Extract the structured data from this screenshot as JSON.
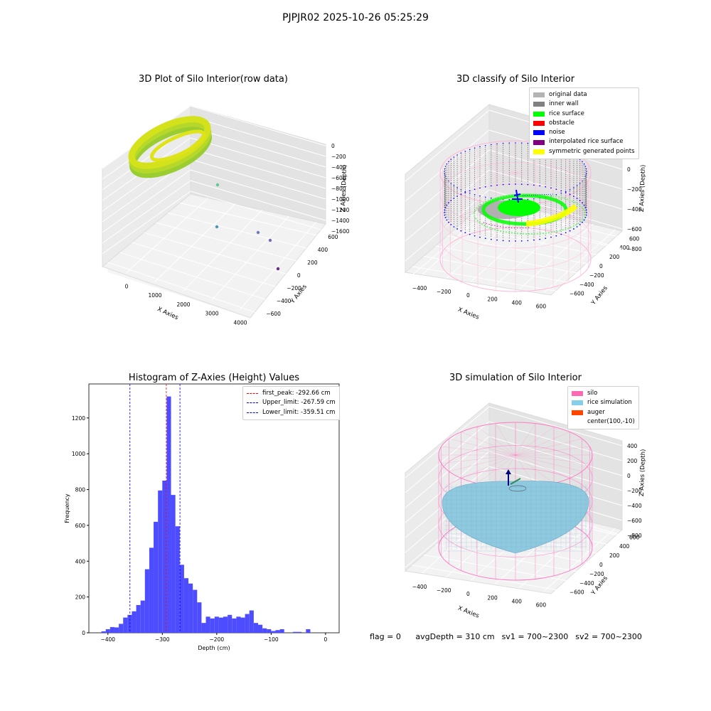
{
  "figure": {
    "suptitle": "PJPJR02 2025-10-26 05:25:29"
  },
  "panels": {
    "raw": {
      "title": "3D Plot of Silo Interior(row data)",
      "xlabel": "X Axies",
      "ylabel": "Y Axies",
      "zlabel": "Z Axies (Depth)",
      "xticks": [
        "0",
        "1000",
        "2000",
        "3000",
        "4000"
      ],
      "yticks": [
        "600",
        "400",
        "200",
        "0",
        "−200",
        "−400",
        "−600"
      ],
      "zticks": [
        "0",
        "−200",
        "−400",
        "−600",
        "−800",
        "−1000",
        "−1200",
        "−1400",
        "−1600"
      ]
    },
    "classify": {
      "title": "3D classify of Silo Interior",
      "xlabel": "X Axies",
      "ylabel": "Y Axies",
      "zlabel": "Z Axies (Depth)",
      "xticks": [
        "−400",
        "−200",
        "0",
        "200",
        "400",
        "600"
      ],
      "yticks": [
        "600",
        "400",
        "200",
        "0",
        "−200",
        "−400",
        "−600"
      ],
      "zticks": [
        "200",
        "0",
        "−200",
        "−400",
        "−600",
        "−800"
      ],
      "legend": [
        {
          "label": "original data",
          "color": "#b3b3b3"
        },
        {
          "label": "inner wall",
          "color": "#808080"
        },
        {
          "label": "rice surface",
          "color": "#00ff00"
        },
        {
          "label": "obstacle",
          "color": "#ff0000"
        },
        {
          "label": "noise",
          "color": "#0000ff"
        },
        {
          "label": "interpolated rice surface",
          "color": "#800080"
        },
        {
          "label": "symmetric generated points",
          "color": "#ffff00"
        }
      ]
    },
    "simulation": {
      "title": "3D simulation of Silo Interior",
      "xlabel": "X Axies",
      "ylabel": "Y Axies",
      "zlabel": "Z Axies (Depth)",
      "xticks": [
        "−400",
        "−200",
        "0",
        "200",
        "400",
        "600"
      ],
      "yticks": [
        "600",
        "400",
        "200",
        "0",
        "−200",
        "−400",
        "−600"
      ],
      "zticks": [
        "400",
        "200",
        "0",
        "−200",
        "−400",
        "−600",
        "−800"
      ],
      "legend": [
        {
          "label": "silo",
          "color": "#ff69b4"
        },
        {
          "label": "rice simulation",
          "color": "#87ceeb"
        },
        {
          "label": "auger",
          "color": "#ff4500"
        },
        {
          "label": "center(100,-10)",
          "color": ""
        }
      ]
    }
  },
  "footer": {
    "flag": "flag = 0",
    "avg": "avgDepth = 310 cm",
    "sv1": "sv1 = 700~2300",
    "sv2": "sv2 = 700~2300"
  },
  "chart_data": [
    {
      "type": "scatter",
      "title": "3D Plot of Silo Interior(row data)",
      "xlabel": "X Axies",
      "ylabel": "Y Axies",
      "zlabel": "Z Axies (Depth)",
      "xlim": [
        -600,
        4500
      ],
      "ylim": [
        -700,
        700
      ],
      "zlim": [
        -1700,
        100
      ],
      "points_description": "dense ring of points around z 0 to -600 near x -600..700",
      "outliers": [
        {
          "x": 400,
          "y": 300,
          "z": -700
        },
        {
          "x": 1600,
          "y": 100,
          "z": -1500
        },
        {
          "x": 2600,
          "y": -150,
          "z": -1600
        },
        {
          "x": 3000,
          "y": -300,
          "z": -1650
        },
        {
          "x": 3900,
          "y": -450,
          "z": -1700
        }
      ]
    },
    {
      "type": "scatter",
      "title": "3D classify of Silo Interior",
      "xlabel": "X Axies",
      "ylabel": "Y Axies",
      "zlabel": "Z Axies (Depth)",
      "xlim": [
        -500,
        700
      ],
      "ylim": [
        -700,
        700
      ],
      "zlim": [
        -900,
        300
      ],
      "series": [
        {
          "name": "original data"
        },
        {
          "name": "inner wall"
        },
        {
          "name": "rice surface"
        },
        {
          "name": "obstacle"
        },
        {
          "name": "noise"
        },
        {
          "name": "interpolated rice surface"
        },
        {
          "name": "symmetric generated points"
        }
      ]
    },
    {
      "type": "bar",
      "title": "Histogram of Z-Axies (Height) Values",
      "xlabel": "Depth (cm)",
      "ylabel": "Frequency",
      "xlim": [
        -435,
        25
      ],
      "ylim": [
        0,
        1390
      ],
      "xticks": [
        -400,
        -300,
        -200,
        -100,
        0
      ],
      "yticks": [
        0,
        200,
        400,
        600,
        800,
        1000,
        1200
      ],
      "bin_width": 8,
      "bin_start": -412,
      "values": [
        8,
        20,
        32,
        30,
        50,
        85,
        100,
        120,
        155,
        180,
        355,
        475,
        620,
        795,
        850,
        1320,
        770,
        595,
        380,
        305,
        275,
        240,
        170,
        55,
        90,
        80,
        90,
        85,
        90,
        100,
        80,
        90,
        85,
        105,
        125,
        55,
        45,
        25,
        20,
        10,
        15,
        20,
        0,
        0,
        5,
        5,
        0,
        20
      ],
      "lines": [
        {
          "label": "first_peak: -292.66 cm",
          "x": -292.66,
          "color": "#ff0000"
        },
        {
          "label": "Upper_limit: -267.59 cm",
          "x": -267.59,
          "color": "#0000ff"
        },
        {
          "label": "Lower_limit: -359.51 cm",
          "x": -359.51,
          "color": "#0000ff"
        }
      ]
    },
    {
      "type": "scatter",
      "title": "3D simulation of Silo Interior",
      "xlabel": "X Axies",
      "ylabel": "Y Axies",
      "zlabel": "Z Axies (Depth)",
      "xlim": [
        -500,
        700
      ],
      "ylim": [
        -700,
        700
      ],
      "zlim": [
        -900,
        450
      ],
      "series": [
        {
          "name": "silo"
        },
        {
          "name": "rice simulation"
        },
        {
          "name": "auger"
        },
        {
          "name": "center(100,-10)"
        }
      ],
      "avg_depth_cm": 310
    }
  ]
}
